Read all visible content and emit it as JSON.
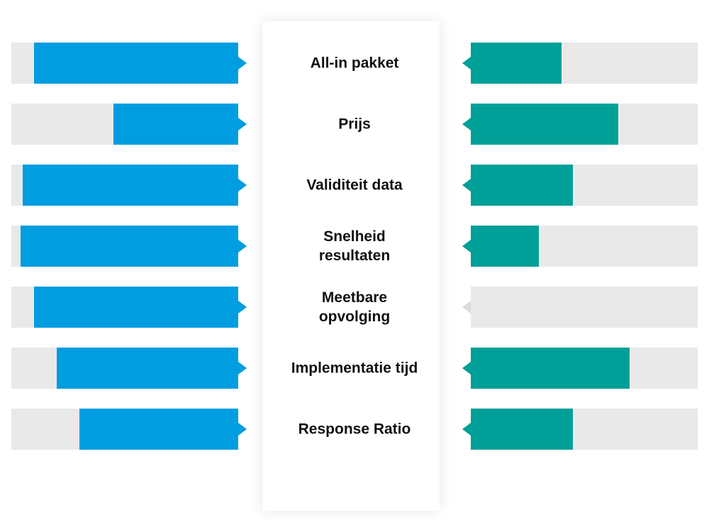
{
  "chart_data": {
    "type": "butterfly",
    "categories": [
      "All-in pakket",
      "Prijs",
      "Validiteit data",
      "Snelheid resultaten",
      "Meetbare opvolging",
      "Implementatie tijd",
      "Response Ratio"
    ],
    "xlim": [
      0,
      100
    ],
    "series": [
      {
        "color": "#009de0",
        "values": [
          90,
          55,
          95,
          96,
          90,
          80,
          70
        ]
      },
      {
        "color": "#00a098",
        "values": [
          40,
          65,
          45,
          30,
          0,
          70,
          45
        ]
      }
    ]
  }
}
